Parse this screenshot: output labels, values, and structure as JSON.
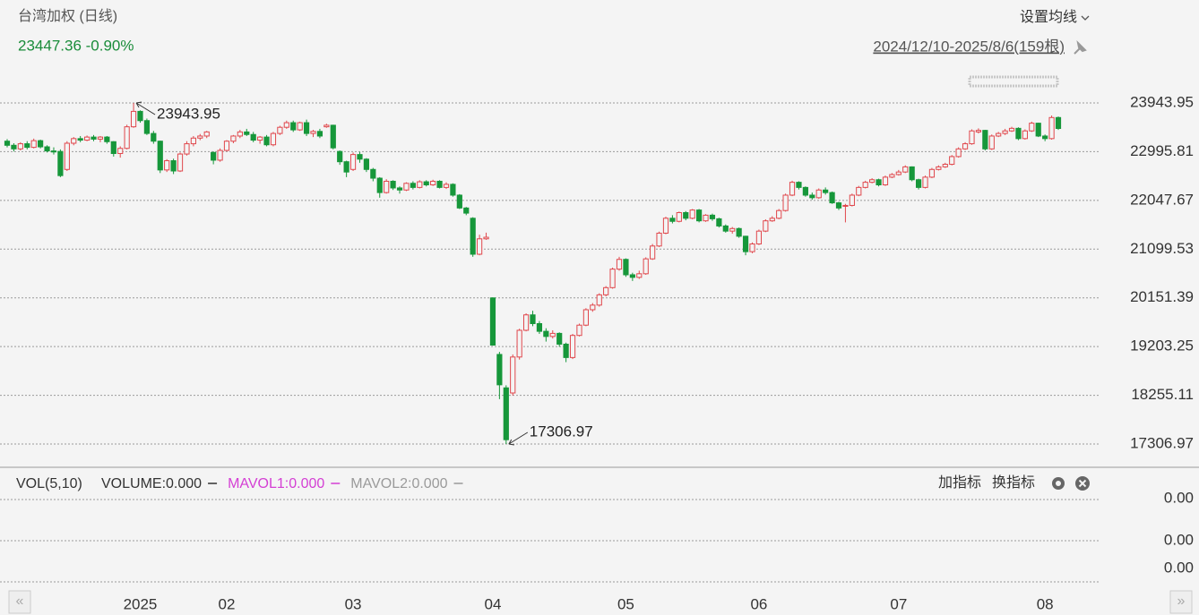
{
  "chart_data": {
    "type": "candlestick",
    "title": "台湾加权 (日线)",
    "last_quote": "23447.36 -0.90%",
    "ma_setting": "设置均线",
    "date_range": "2024/12/10-2025/8/6(159根)",
    "up_color": "#e0474c",
    "down_color": "#16973a",
    "ylim": [
      17306.97,
      23943.95
    ],
    "yticks": [
      23943.95,
      22995.81,
      22047.67,
      21099.53,
      20151.39,
      19203.25,
      18255.11,
      17306.97
    ],
    "grid": true,
    "x_tick_labels": [
      {
        "index": 20,
        "label": "2025"
      },
      {
        "index": 33,
        "label": "02"
      },
      {
        "index": 52,
        "label": "03"
      },
      {
        "index": 73,
        "label": "04"
      },
      {
        "index": 93,
        "label": "05"
      },
      {
        "index": 113,
        "label": "06"
      },
      {
        "index": 134,
        "label": "07"
      },
      {
        "index": 156,
        "label": "08"
      }
    ],
    "annotations": [
      {
        "index": 19,
        "text": "23943.95",
        "side": "high"
      },
      {
        "index": 75,
        "text": "17306.97",
        "side": "low"
      }
    ],
    "candles": [
      [
        23200,
        23240,
        23080,
        23120
      ],
      [
        23120,
        23160,
        23000,
        23050
      ],
      [
        23050,
        23180,
        23020,
        23150
      ],
      [
        23150,
        23200,
        23040,
        23080
      ],
      [
        23080,
        23250,
        23060,
        23210
      ],
      [
        23210,
        23230,
        23060,
        23090
      ],
      [
        23090,
        23120,
        22980,
        23010
      ],
      [
        23010,
        23080,
        22940,
        22990
      ],
      [
        23000,
        23040,
        22500,
        22530
      ],
      [
        22650,
        23200,
        22620,
        23160
      ],
      [
        23160,
        23280,
        23120,
        23250
      ],
      [
        23250,
        23300,
        23180,
        23220
      ],
      [
        23220,
        23310,
        23200,
        23280
      ],
      [
        23280,
        23320,
        23200,
        23240
      ],
      [
        23240,
        23300,
        23180,
        23280
      ],
      [
        23280,
        23300,
        23150,
        23190
      ],
      [
        23190,
        23200,
        22900,
        22960
      ],
      [
        22960,
        23100,
        22880,
        23060
      ],
      [
        23060,
        23520,
        23040,
        23480
      ],
      [
        23480,
        23943.95,
        23460,
        23780
      ],
      [
        23780,
        23800,
        23560,
        23600
      ],
      [
        23600,
        23640,
        23320,
        23350
      ],
      [
        23350,
        23400,
        23150,
        23200
      ],
      [
        23200,
        23210,
        22580,
        22640
      ],
      [
        22640,
        22850,
        22600,
        22820
      ],
      [
        22820,
        22860,
        22560,
        22620
      ],
      [
        22620,
        22980,
        22600,
        22950
      ],
      [
        22950,
        23200,
        22920,
        23150
      ],
      [
        23150,
        23300,
        23100,
        23260
      ],
      [
        23260,
        23340,
        23220,
        23300
      ],
      [
        23300,
        23400,
        23260,
        23380
      ],
      [
        22980,
        23000,
        22750,
        22830
      ],
      [
        22830,
        23060,
        22800,
        23020
      ],
      [
        23020,
        23220,
        23000,
        23200
      ],
      [
        23200,
        23320,
        23160,
        23300
      ],
      [
        23300,
        23420,
        23260,
        23380
      ],
      [
        23380,
        23440,
        23300,
        23330
      ],
      [
        23330,
        23380,
        23180,
        23220
      ],
      [
        23220,
        23300,
        23150,
        23280
      ],
      [
        23280,
        23320,
        23100,
        23130
      ],
      [
        23130,
        23380,
        23100,
        23350
      ],
      [
        23350,
        23500,
        23320,
        23470
      ],
      [
        23470,
        23600,
        23440,
        23560
      ],
      [
        23560,
        23600,
        23380,
        23420
      ],
      [
        23420,
        23580,
        23400,
        23560
      ],
      [
        23560,
        23620,
        23300,
        23350
      ],
      [
        23350,
        23420,
        23280,
        23390
      ],
      [
        23390,
        23440,
        23260,
        23300
      ],
      [
        23480,
        23540,
        23460,
        23510
      ],
      [
        23510,
        23520,
        23040,
        23070
      ],
      [
        23000,
        23020,
        22740,
        22800
      ],
      [
        22800,
        22820,
        22500,
        22600
      ],
      [
        22650,
        22980,
        22620,
        22940
      ],
      [
        22940,
        22990,
        22780,
        22850
      ],
      [
        22850,
        22870,
        22600,
        22650
      ],
      [
        22650,
        22680,
        22420,
        22480
      ],
      [
        22480,
        22500,
        22100,
        22200
      ],
      [
        22200,
        22460,
        22180,
        22420
      ],
      [
        22420,
        22440,
        22250,
        22290
      ],
      [
        22290,
        22320,
        22180,
        22250
      ],
      [
        22250,
        22400,
        22230,
        22380
      ],
      [
        22380,
        22420,
        22260,
        22300
      ],
      [
        22300,
        22440,
        22280,
        22410
      ],
      [
        22410,
        22440,
        22320,
        22350
      ],
      [
        22350,
        22450,
        22330,
        22420
      ],
      [
        22420,
        22440,
        22280,
        22300
      ],
      [
        22300,
        22400,
        22270,
        22360
      ],
      [
        22360,
        22380,
        22120,
        22150
      ],
      [
        22150,
        22170,
        21880,
        21900
      ],
      [
        21900,
        21920,
        21760,
        21800
      ],
      [
        21700,
        21720,
        20950,
        21000
      ],
      [
        21000,
        21380,
        20980,
        21300
      ],
      [
        21300,
        21420,
        21280,
        21330
      ],
      [
        20150,
        20160,
        19220,
        19232
      ],
      [
        19050,
        19100,
        18180,
        18459
      ],
      [
        18400,
        18450,
        17306.97,
        17391
      ],
      [
        18300,
        19050,
        18250,
        19000
      ],
      [
        19000,
        19550,
        18950,
        19520
      ],
      [
        19520,
        19850,
        19500,
        19820
      ],
      [
        19820,
        19900,
        19600,
        19650
      ],
      [
        19650,
        19700,
        19450,
        19500
      ],
      [
        19500,
        19560,
        19300,
        19400
      ],
      [
        19400,
        19520,
        19360,
        19460
      ],
      [
        19460,
        19480,
        19200,
        19250
      ],
      [
        19250,
        19280,
        18900,
        18990
      ],
      [
        18990,
        19450,
        18960,
        19420
      ],
      [
        19420,
        19650,
        19400,
        19620
      ],
      [
        19620,
        19950,
        19600,
        19920
      ],
      [
        19920,
        20050,
        19880,
        20010
      ],
      [
        20010,
        20240,
        19980,
        20210
      ],
      [
        20210,
        20380,
        20180,
        20350
      ],
      [
        20350,
        20740,
        20330,
        20710
      ],
      [
        20710,
        20950,
        20680,
        20900
      ],
      [
        20900,
        20920,
        20560,
        20600
      ],
      [
        20600,
        20640,
        20480,
        20550
      ],
      [
        20550,
        20680,
        20520,
        20620
      ],
      [
        20620,
        20940,
        20600,
        20910
      ],
      [
        20910,
        21200,
        20890,
        21160
      ],
      [
        21160,
        21440,
        21140,
        21410
      ],
      [
        21410,
        21730,
        21390,
        21700
      ],
      [
        21700,
        21760,
        21600,
        21640
      ],
      [
        21640,
        21830,
        21620,
        21810
      ],
      [
        21810,
        21840,
        21660,
        21700
      ],
      [
        21700,
        21880,
        21680,
        21860
      ],
      [
        21860,
        21880,
        21620,
        21650
      ],
      [
        21650,
        21780,
        21630,
        21760
      ],
      [
        21760,
        21790,
        21650,
        21690
      ],
      [
        21690,
        21710,
        21520,
        21550
      ],
      [
        21550,
        21580,
        21420,
        21450
      ],
      [
        21450,
        21530,
        21400,
        21500
      ],
      [
        21500,
        21520,
        21320,
        21350
      ],
      [
        21350,
        21360,
        20980,
        21050
      ],
      [
        21050,
        21230,
        21020,
        21200
      ],
      [
        21200,
        21480,
        21180,
        21450
      ],
      [
        21450,
        21680,
        21430,
        21650
      ],
      [
        21650,
        21740,
        21630,
        21700
      ],
      [
        21700,
        21880,
        21680,
        21850
      ],
      [
        21850,
        22180,
        21830,
        22150
      ],
      [
        22150,
        22430,
        22130,
        22400
      ],
      [
        22400,
        22420,
        22260,
        22300
      ],
      [
        22300,
        22320,
        22120,
        22150
      ],
      [
        22150,
        22200,
        22060,
        22100
      ],
      [
        22100,
        22280,
        22080,
        22250
      ],
      [
        22250,
        22300,
        22160,
        22200
      ],
      [
        22200,
        22220,
        21980,
        22000
      ],
      [
        22000,
        22020,
        21860,
        21900
      ],
      [
        21940,
        21980,
        21620,
        21950
      ],
      [
        21950,
        22180,
        21930,
        22150
      ],
      [
        22150,
        22330,
        22130,
        22300
      ],
      [
        22300,
        22430,
        22280,
        22400
      ],
      [
        22400,
        22480,
        22380,
        22450
      ],
      [
        22450,
        22470,
        22320,
        22350
      ],
      [
        22350,
        22530,
        22330,
        22500
      ],
      [
        22500,
        22580,
        22480,
        22550
      ],
      [
        22550,
        22640,
        22530,
        22600
      ],
      [
        22600,
        22730,
        22580,
        22700
      ],
      [
        22700,
        22710,
        22420,
        22450
      ],
      [
        22450,
        22470,
        22260,
        22300
      ],
      [
        22300,
        22530,
        22280,
        22500
      ],
      [
        22500,
        22680,
        22480,
        22650
      ],
      [
        22650,
        22730,
        22630,
        22700
      ],
      [
        22700,
        22780,
        22680,
        22750
      ],
      [
        22750,
        22930,
        22730,
        22900
      ],
      [
        22900,
        23080,
        22880,
        23050
      ],
      [
        23050,
        23180,
        23030,
        23150
      ],
      [
        23150,
        23430,
        23130,
        23400
      ],
      [
        23380,
        23450,
        23350,
        23410
      ],
      [
        23410,
        23420,
        23020,
        23050
      ],
      [
        23050,
        23330,
        23030,
        23300
      ],
      [
        23300,
        23380,
        23280,
        23350
      ],
      [
        23350,
        23440,
        23320,
        23400
      ],
      [
        23400,
        23480,
        23380,
        23450
      ],
      [
        23450,
        23470,
        23220,
        23250
      ],
      [
        23250,
        23430,
        23230,
        23400
      ],
      [
        23400,
        23580,
        23380,
        23550
      ],
      [
        23550,
        23560,
        23280,
        23300
      ],
      [
        23300,
        23330,
        23200,
        23250
      ],
      [
        23250,
        23700,
        23230,
        23660
      ],
      [
        23660,
        23680,
        23420,
        23447.36
      ]
    ],
    "volume_panel": {
      "indicator": "VOL(5,10)",
      "legend": [
        {
          "text": "VOLUME:0.000",
          "color": "#333333"
        },
        {
          "text": "MAVOL1:0.000",
          "color": "#d43fd4"
        },
        {
          "text": "MAVOL2:0.000",
          "color": "#9a9a9a"
        }
      ],
      "buttons": [
        "加指标",
        "换指标"
      ],
      "axis_labels": [
        "0.00",
        "0.00",
        "0.00"
      ]
    }
  }
}
